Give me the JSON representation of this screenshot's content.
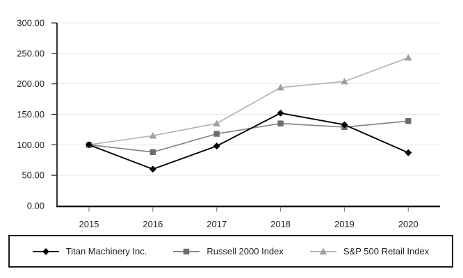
{
  "page": {
    "background": "#ffffff"
  },
  "chart_data": {
    "type": "line",
    "title": "",
    "x_labels": [
      "2015",
      "2016",
      "2017",
      "2018",
      "2019",
      "2020"
    ],
    "series": [
      {
        "name": "Titan Machinery Inc.",
        "marker": "diamond",
        "line_color": "#000000",
        "marker_color": "#000000",
        "values": [
          100,
          60,
          98,
          152,
          133,
          87
        ]
      },
      {
        "name": "Russell 2000 Index",
        "marker": "square",
        "line_color": "#858585",
        "marker_color": "#6d6d6d",
        "values": [
          100,
          88,
          118,
          135,
          129,
          139
        ]
      },
      {
        "name": "S&P 500 Retail Index",
        "marker": "triangle",
        "line_color": "#b3b3b3",
        "marker_color": "#9f9f9f",
        "values": [
          100,
          115,
          135,
          194,
          204,
          243
        ]
      }
    ],
    "ylim": [
      0,
      300
    ],
    "ytick_step": 50,
    "ytick_labels": [
      "0.00",
      "50.00",
      "100.00",
      "150.00",
      "200.00",
      "250.00",
      "300.00"
    ],
    "grid": true,
    "legend_position": "bottom-boxed",
    "colors": {
      "axis": "#111111",
      "grid": "#e8e8e8",
      "x_tick": "#7f7f7f",
      "y_tick": "#222222",
      "text": "#212121",
      "legend_border": "#1a1a1a"
    }
  }
}
